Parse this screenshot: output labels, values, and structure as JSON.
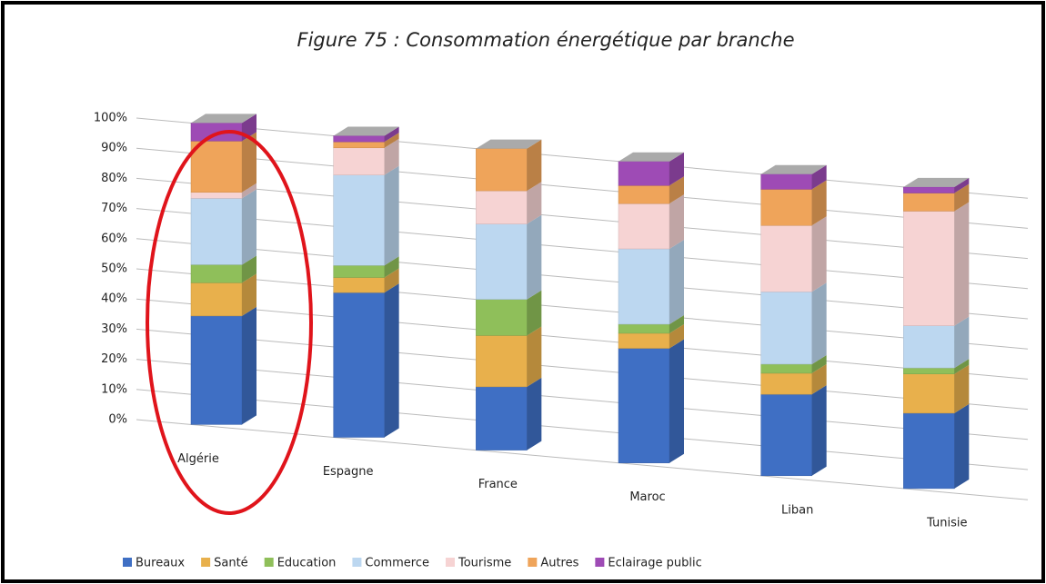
{
  "chart_data": {
    "type": "stacked_bar_3d",
    "title": "Figure 75 : Consommation énergétique par branche",
    "categories": [
      "Algérie",
      "Espagne",
      "France",
      "Maroc",
      "Liban",
      "Tunisie"
    ],
    "series": [
      {
        "name": "Bureaux",
        "color": "#3f6fc4",
        "values": [
          36,
          48,
          21,
          38,
          27,
          25
        ]
      },
      {
        "name": "Santé",
        "color": "#e8b04c",
        "values": [
          11,
          5,
          17,
          5,
          7,
          13
        ]
      },
      {
        "name": "Education",
        "color": "#8fbf5a",
        "values": [
          6,
          4,
          12,
          3,
          3,
          2
        ]
      },
      {
        "name": "Commerce",
        "color": "#bcd7f0",
        "values": [
          22,
          30,
          25,
          25,
          24,
          14
        ]
      },
      {
        "name": "Tourisme",
        "color": "#f6d3d3",
        "values": [
          2,
          9,
          11,
          15,
          22,
          38
        ]
      },
      {
        "name": "Autres",
        "color": "#efa45a",
        "values": [
          17,
          2,
          14,
          6,
          12,
          6
        ]
      },
      {
        "name": "Eclairage public",
        "color": "#9e4bb5",
        "values": [
          6,
          2,
          0,
          8,
          5,
          2
        ]
      }
    ],
    "ylim": [
      0,
      100
    ],
    "yticks": [
      {
        "value": 0,
        "label": "0%"
      },
      {
        "value": 10,
        "label": "10%"
      },
      {
        "value": 20,
        "label": "20%"
      },
      {
        "value": 30,
        "label": "30%"
      },
      {
        "value": 40,
        "label": "40%"
      },
      {
        "value": 50,
        "label": "50%"
      },
      {
        "value": 60,
        "label": "60%"
      },
      {
        "value": 70,
        "label": "70%"
      },
      {
        "value": 80,
        "label": "80%"
      },
      {
        "value": 90,
        "label": "90%"
      },
      {
        "value": 100,
        "label": "100%"
      }
    ],
    "grid": true,
    "legend": "bottom"
  }
}
